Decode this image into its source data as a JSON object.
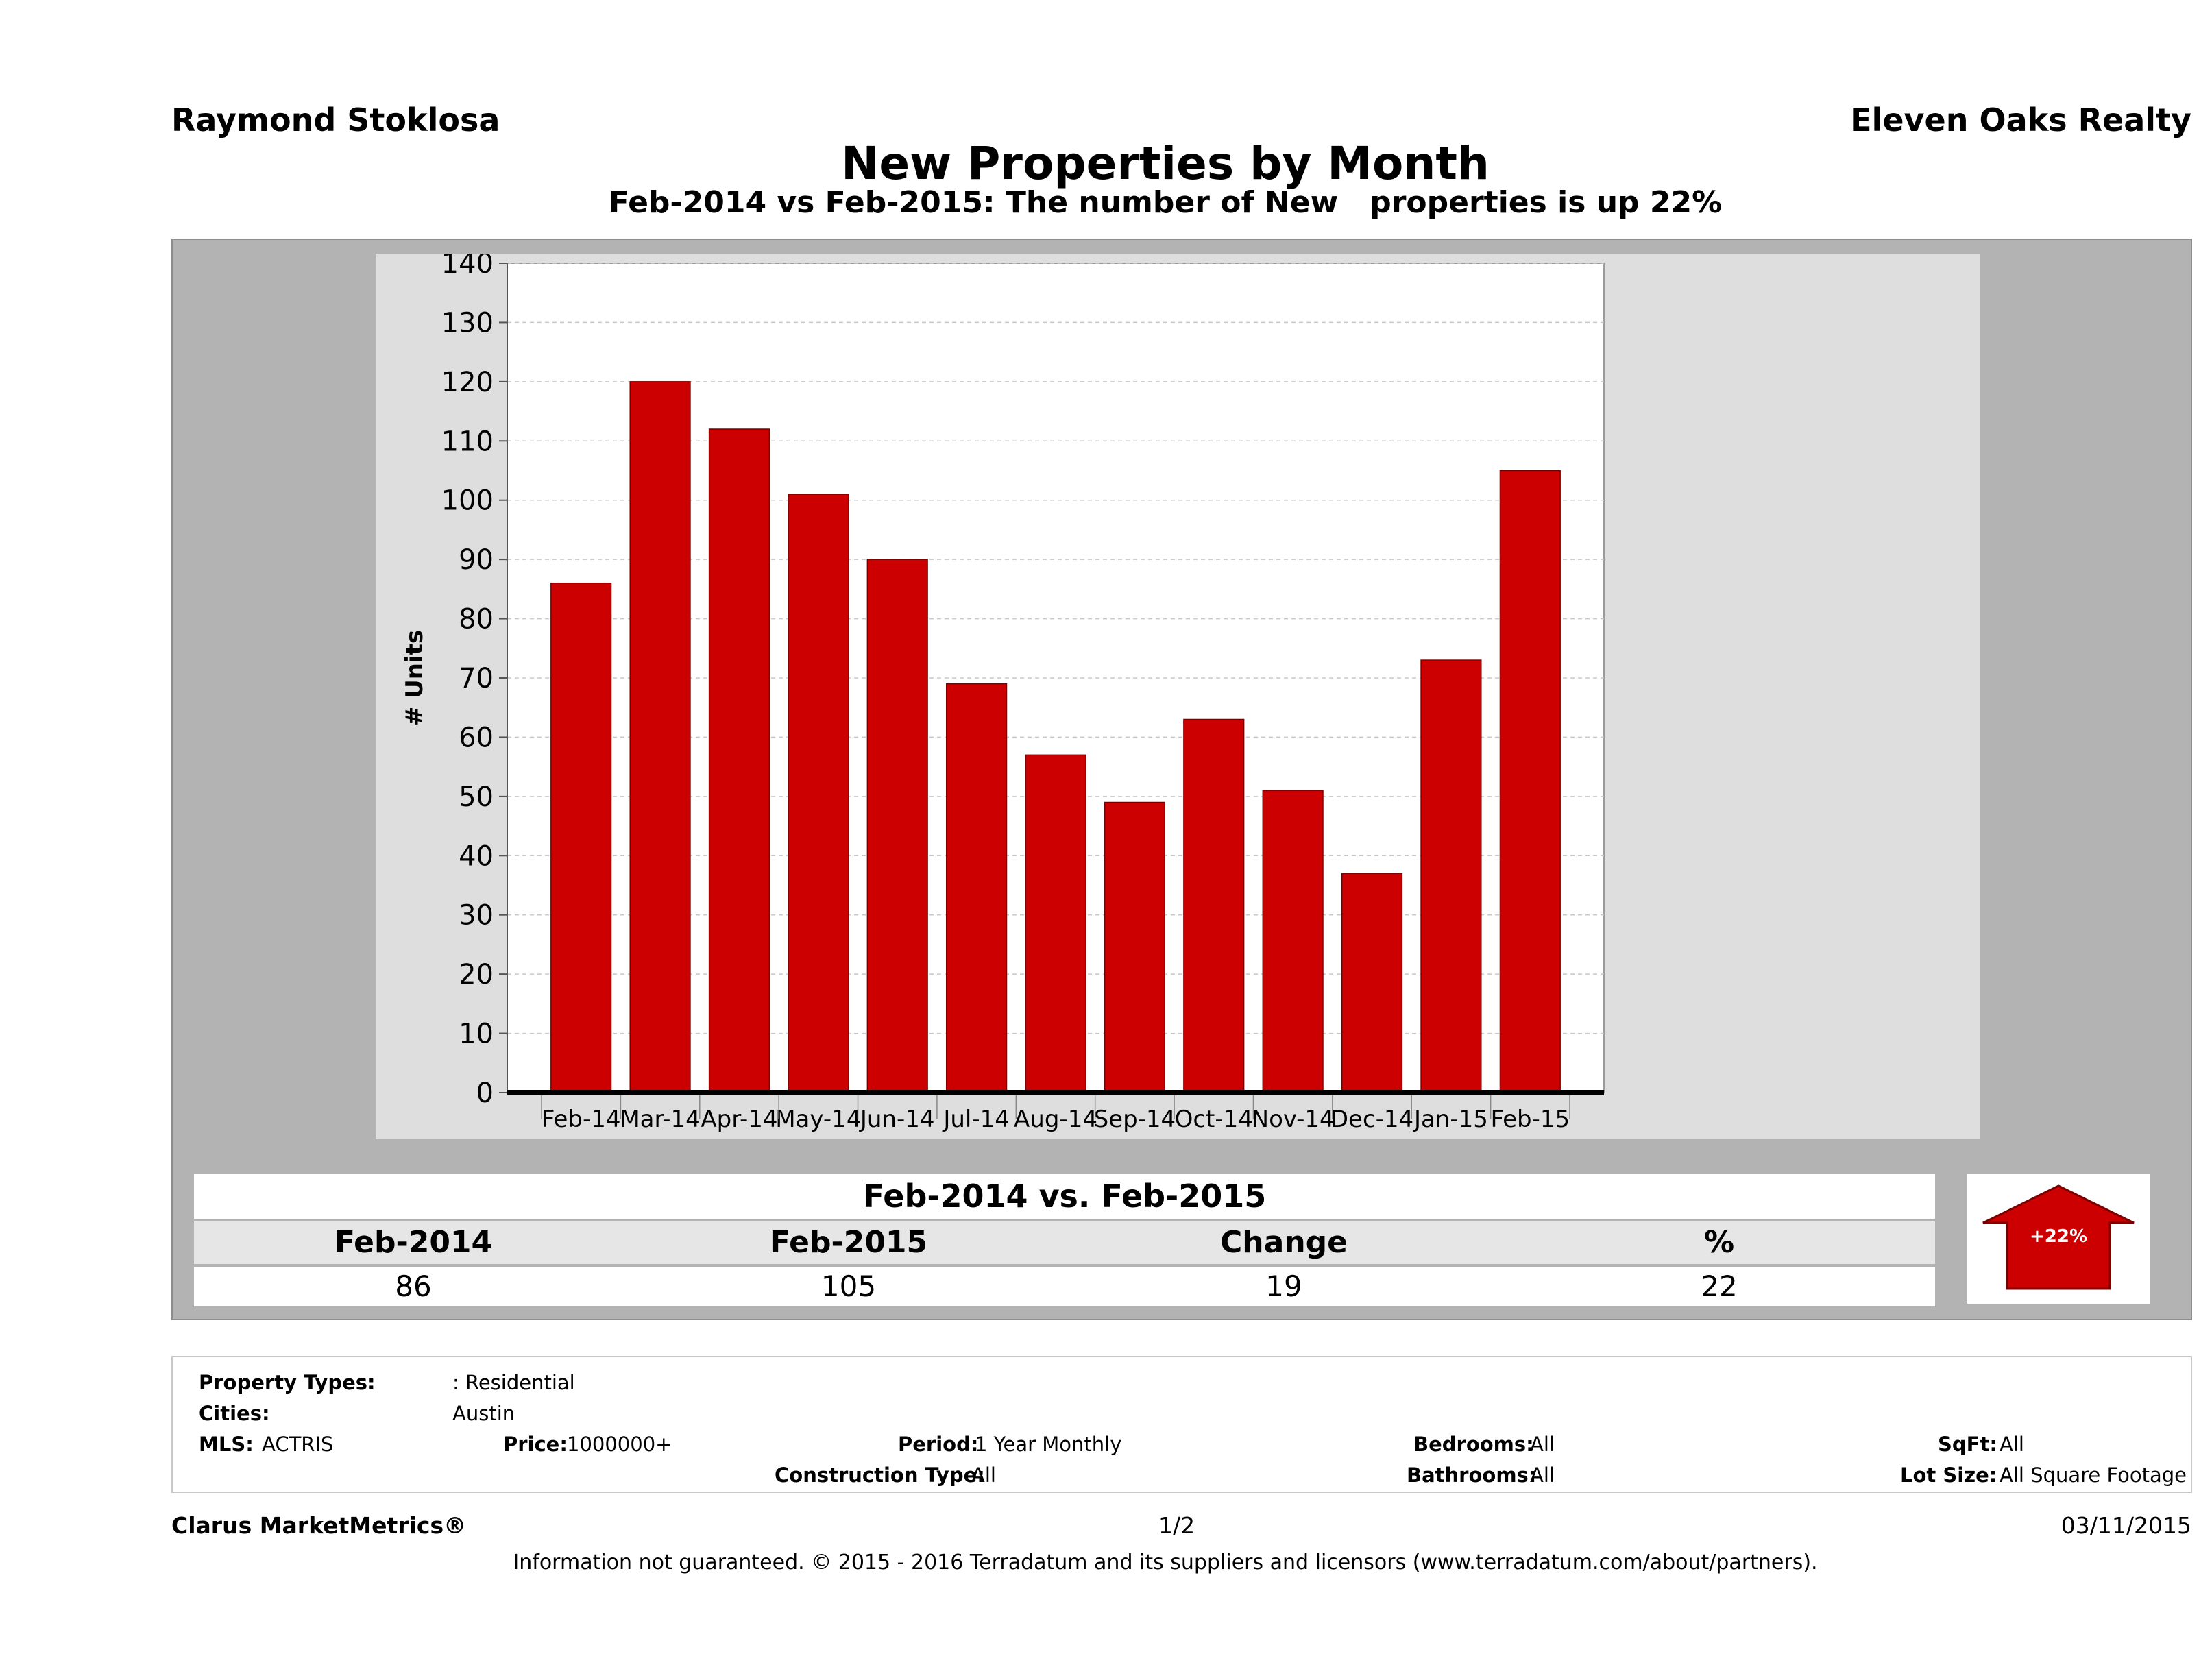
{
  "header": {
    "agent": "Raymond Stoklosa",
    "office": "Eleven Oaks Realty",
    "title": "New Properties by Month",
    "subtitle": "Feb-2014 vs Feb-2015: The number of New   properties is up 22%"
  },
  "colors": {
    "bar": "#cc0000",
    "panel": "#b3b3b3",
    "plot_bg": "#ffffff",
    "arrow": "#cc0000"
  },
  "chart_data": {
    "type": "bar",
    "ylabel": "# Units",
    "ylim": [
      0,
      140
    ],
    "yticks": [
      0,
      10,
      20,
      30,
      40,
      50,
      60,
      70,
      80,
      90,
      100,
      110,
      120,
      130,
      140
    ],
    "grid": true,
    "categories": [
      "Feb-14",
      "Mar-14",
      "Apr-14",
      "May-14",
      "Jun-14",
      "Jul-14",
      "Aug-14",
      "Sep-14",
      "Oct-14",
      "Nov-14",
      "Dec-14",
      "Jan-15",
      "Feb-15"
    ],
    "values": [
      86,
      120,
      112,
      101,
      90,
      69,
      57,
      49,
      63,
      51,
      37,
      73,
      105
    ]
  },
  "summary": {
    "title": "Feb-2014 vs. Feb-2015",
    "headers": [
      "Feb-2014",
      "Feb-2015",
      "Change",
      "%"
    ],
    "values": [
      "86",
      "105",
      "19",
      "22"
    ],
    "badge": "+22%"
  },
  "criteria": {
    "property_types_label": "Property Types:",
    "property_types_value": ": Residential",
    "cities_label": "Cities:",
    "cities_value": "Austin",
    "mls_label": "MLS:",
    "mls_value": "ACTRIS",
    "price_label": "Price:",
    "price_value": "1000000+",
    "period_label": "Period:",
    "period_value": "1 Year Monthly",
    "construction_label": "Construction Type:",
    "construction_value": "All",
    "bedrooms_label": "Bedrooms:",
    "bedrooms_value": "All",
    "bathrooms_label": "Bathrooms:",
    "bathrooms_value": "All",
    "sqft_label": "SqFt:",
    "sqft_value": "All",
    "lot_label": "Lot Size:",
    "lot_value": "All Square Footage"
  },
  "footer": {
    "brand": "Clarus MarketMetrics®",
    "page": "1/2",
    "date": "03/11/2015",
    "disclaimer": "Information not guaranteed. © 2015 - 2016 Terradatum and its suppliers and licensors (www.terradatum.com/about/partners)."
  }
}
